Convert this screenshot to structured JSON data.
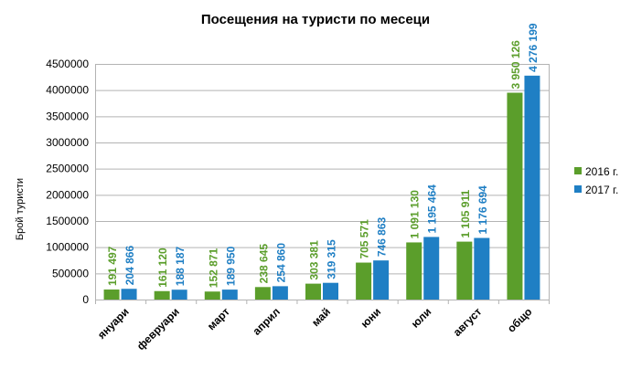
{
  "chart_data": {
    "type": "bar",
    "title": "Посещения на туристи по месеци",
    "ylabel": "Брой туристи",
    "xlabel": "",
    "ylim": [
      0,
      4500000
    ],
    "yticks": [
      "0",
      "500000",
      "1000000",
      "1500000",
      "2000000",
      "2500000",
      "3000000",
      "3500000",
      "4000000",
      "4500000"
    ],
    "grid": true,
    "legend_position": "right",
    "categories": [
      "януари",
      "февруари",
      "март",
      "април",
      "май",
      "юни",
      "юли",
      "август",
      "общо"
    ],
    "series": [
      {
        "name": "2016 г.",
        "color": "#5b9e2b",
        "values": [
          191497,
          161120,
          152871,
          238645,
          303381,
          705571,
          1091130,
          1105911,
          3950126
        ],
        "labels": [
          "191 497",
          "161 120",
          "152 871",
          "238 645",
          "303 381",
          "705 571",
          "1 091 130",
          "1 105 911",
          "3 950 126"
        ]
      },
      {
        "name": "2017 г.",
        "color": "#1f7fc4",
        "values": [
          204866,
          188187,
          189950,
          254860,
          319315,
          746863,
          1195464,
          1176694,
          4276199
        ],
        "labels": [
          "204 866",
          "188 187",
          "189 950",
          "254 860",
          "319 315",
          "746 863",
          "1 195 464",
          "1 176 694",
          "4 276 199"
        ]
      }
    ]
  }
}
